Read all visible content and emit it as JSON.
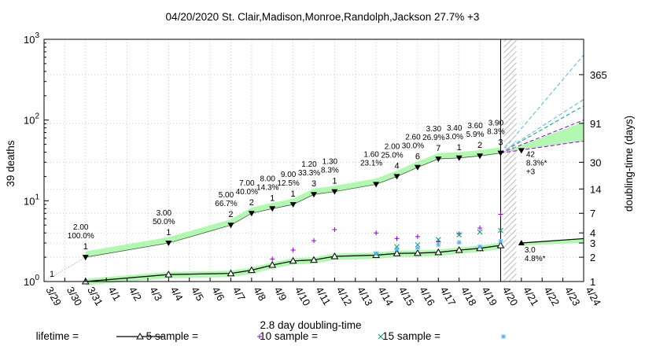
{
  "chart_data": {
    "type": "line",
    "title": "04/20/2020 St. Clair,Madison,Monroe,Randolph,Jackson 27.7% +3",
    "ylabel": "39 deaths",
    "y2label": "doubling-time (days)",
    "xlabel": "2.8 day doubling-time",
    "yscale": "log",
    "ylim": [
      1,
      1000
    ],
    "y_tick_labels": [
      {
        "base": "10",
        "exp": "0",
        "value": 1
      },
      {
        "base": "10",
        "exp": "1",
        "value": 10
      },
      {
        "base": "10",
        "exp": "2",
        "value": 100
      },
      {
        "base": "10",
        "exp": "3",
        "value": 1000
      }
    ],
    "y2_ticks": [
      {
        "label": "1",
        "value": 1
      },
      {
        "label": "2",
        "value": 2
      },
      {
        "label": "3",
        "value": 3
      },
      {
        "label": "4",
        "value": 4
      },
      {
        "label": "7",
        "value": 7
      },
      {
        "label": "14",
        "value": 14
      },
      {
        "label": "30",
        "value": 30
      },
      {
        "label": "91",
        "value": 91
      },
      {
        "label": "365",
        "value": 365
      }
    ],
    "categories": [
      "3/29",
      "3/30",
      "3/31",
      "4/1",
      "4/2",
      "4/3",
      "4/4",
      "4/5",
      "4/6",
      "4/7",
      "4/8",
      "4/9",
      "4/10",
      "4/11",
      "4/12",
      "4/13",
      "4/14",
      "4/15",
      "4/16",
      "4/17",
      "4/18",
      "4/19",
      "4/20",
      "4/21",
      "4/22",
      "4/23",
      "4/24"
    ],
    "grid": true,
    "cumulative_deaths": [
      {
        "date": "3/31",
        "value": 2,
        "label": "1"
      },
      {
        "date": "4/4",
        "value": 3,
        "label": "1"
      },
      {
        "date": "4/7",
        "value": 5,
        "label": "2"
      },
      {
        "date": "4/8",
        "value": 7,
        "label": "2"
      },
      {
        "date": "4/9",
        "value": 8,
        "label": "1"
      },
      {
        "date": "4/10",
        "value": 9,
        "label": "1"
      },
      {
        "date": "4/11",
        "value": 12,
        "label": "3"
      },
      {
        "date": "4/12",
        "value": 13,
        "label": "1"
      },
      {
        "date": "4/14",
        "value": 16,
        "label": ""
      },
      {
        "date": "4/15",
        "value": 20,
        "label": "4"
      },
      {
        "date": "4/16",
        "value": 26,
        "label": "6"
      },
      {
        "date": "4/17",
        "value": 33,
        "label": "7"
      },
      {
        "date": "4/18",
        "value": 34,
        "label": "1"
      },
      {
        "date": "4/19",
        "value": 36,
        "label": "2"
      },
      {
        "date": "4/20",
        "value": 39,
        "label": "3"
      }
    ],
    "start_point": {
      "date": "3/29",
      "label": "1"
    },
    "annotations": [
      {
        "date": "3/31",
        "lines": [
          "2.00",
          "100.0%"
        ]
      },
      {
        "date": "4/4",
        "lines": [
          "3.00",
          "50.0%"
        ]
      },
      {
        "date": "4/7",
        "lines": [
          "5.00",
          "66.7%"
        ]
      },
      {
        "date": "4/8",
        "lines": [
          "7.00",
          "40.0%"
        ]
      },
      {
        "date": "4/9",
        "lines": [
          "8.00",
          "14.3%"
        ]
      },
      {
        "date": "4/10",
        "lines": [
          "9.00",
          "12.5%"
        ]
      },
      {
        "date": "4/11",
        "lines": [
          "1.20",
          "33.3%"
        ]
      },
      {
        "date": "4/12",
        "lines": [
          "1.30",
          "8.3%"
        ]
      },
      {
        "date": "4/14",
        "lines": [
          "1.60",
          "23.1%"
        ]
      },
      {
        "date": "4/15",
        "lines": [
          "2.00",
          "25.0%"
        ]
      },
      {
        "date": "4/16",
        "lines": [
          "2.60",
          "30.0%"
        ]
      },
      {
        "date": "4/17",
        "lines": [
          "3.30",
          "26.9%"
        ]
      },
      {
        "date": "4/18",
        "lines": [
          "3.40",
          "3.0%"
        ]
      },
      {
        "date": "4/19",
        "lines": [
          "3.60",
          "5.9%"
        ]
      },
      {
        "date": "4/20",
        "lines": [
          "3.90",
          "8.3%"
        ]
      }
    ],
    "projection": {
      "date": "4/21",
      "value": 42,
      "lines": [
        "42",
        "8.3%*",
        "+3"
      ]
    },
    "lifetime_doubling": [
      {
        "date": "3/31",
        "value": 1.0
      },
      {
        "date": "4/4",
        "value": 1.22
      },
      {
        "date": "4/7",
        "value": 1.26
      },
      {
        "date": "4/8",
        "value": 1.38
      },
      {
        "date": "4/9",
        "value": 1.6
      },
      {
        "date": "4/10",
        "value": 1.8
      },
      {
        "date": "4/11",
        "value": 1.85
      },
      {
        "date": "4/12",
        "value": 2.05
      },
      {
        "date": "4/14",
        "value": 2.12
      },
      {
        "date": "4/15",
        "value": 2.23
      },
      {
        "date": "4/16",
        "value": 2.25
      },
      {
        "date": "4/17",
        "value": 2.3
      },
      {
        "date": "4/18",
        "value": 2.45
      },
      {
        "date": "4/19",
        "value": 2.58
      },
      {
        "date": "4/20",
        "value": 2.8
      }
    ],
    "lifetime_projection": {
      "date": "4/21",
      "value": 3.0,
      "lines": [
        "3.0",
        "4.8%*"
      ]
    },
    "sample5": [
      {
        "date": "4/9",
        "value": 1.9
      },
      {
        "date": "4/10",
        "value": 2.45
      },
      {
        "date": "4/11",
        "value": 3.2
      },
      {
        "date": "4/12",
        "value": 4.4
      },
      {
        "date": "4/14",
        "value": 4.0
      },
      {
        "date": "4/15",
        "value": 3.4
      },
      {
        "date": "4/16",
        "value": 3.6
      },
      {
        "date": "4/17",
        "value": 3.1
      },
      {
        "date": "4/18",
        "value": 3.9
      },
      {
        "date": "4/19",
        "value": 4.6
      },
      {
        "date": "4/20",
        "value": 6.8
      }
    ],
    "sample10": [
      {
        "date": "4/14",
        "value": 2.2
      },
      {
        "date": "4/15",
        "value": 2.7
      },
      {
        "date": "4/16",
        "value": 2.85
      },
      {
        "date": "4/17",
        "value": 3.3
      },
      {
        "date": "4/18",
        "value": 3.8
      },
      {
        "date": "4/19",
        "value": 4.1
      },
      {
        "date": "4/20",
        "value": 4.3
      }
    ],
    "sample15": [
      {
        "date": "4/14",
        "value": 2.22
      },
      {
        "date": "4/15",
        "value": 2.5
      },
      {
        "date": "4/16",
        "value": 2.6
      },
      {
        "date": "4/17",
        "value": 2.85
      },
      {
        "date": "4/18",
        "value": 3.05
      },
      {
        "date": "4/19",
        "value": 2.7
      },
      {
        "date": "4/20",
        "value": 3.15
      }
    ],
    "legend": [
      {
        "label": "lifetime =",
        "marker": "triangle-line"
      },
      {
        "label": "5 sample =",
        "marker": "plus"
      },
      {
        "label": "10 sample =",
        "marker": "cross"
      },
      {
        "label": "15 sample =",
        "marker": "star"
      }
    ],
    "legend_placement": "bottom",
    "colors": {
      "band": "#b3f7b3",
      "sample5": "#9400d3",
      "sample10": "#009e73",
      "sample15": "#56b4e9",
      "grid": "#c8c8c8",
      "projection_purple": "#9400d3",
      "projection_cyan": "#56b4e9",
      "projection_teal": "#009e73"
    }
  }
}
